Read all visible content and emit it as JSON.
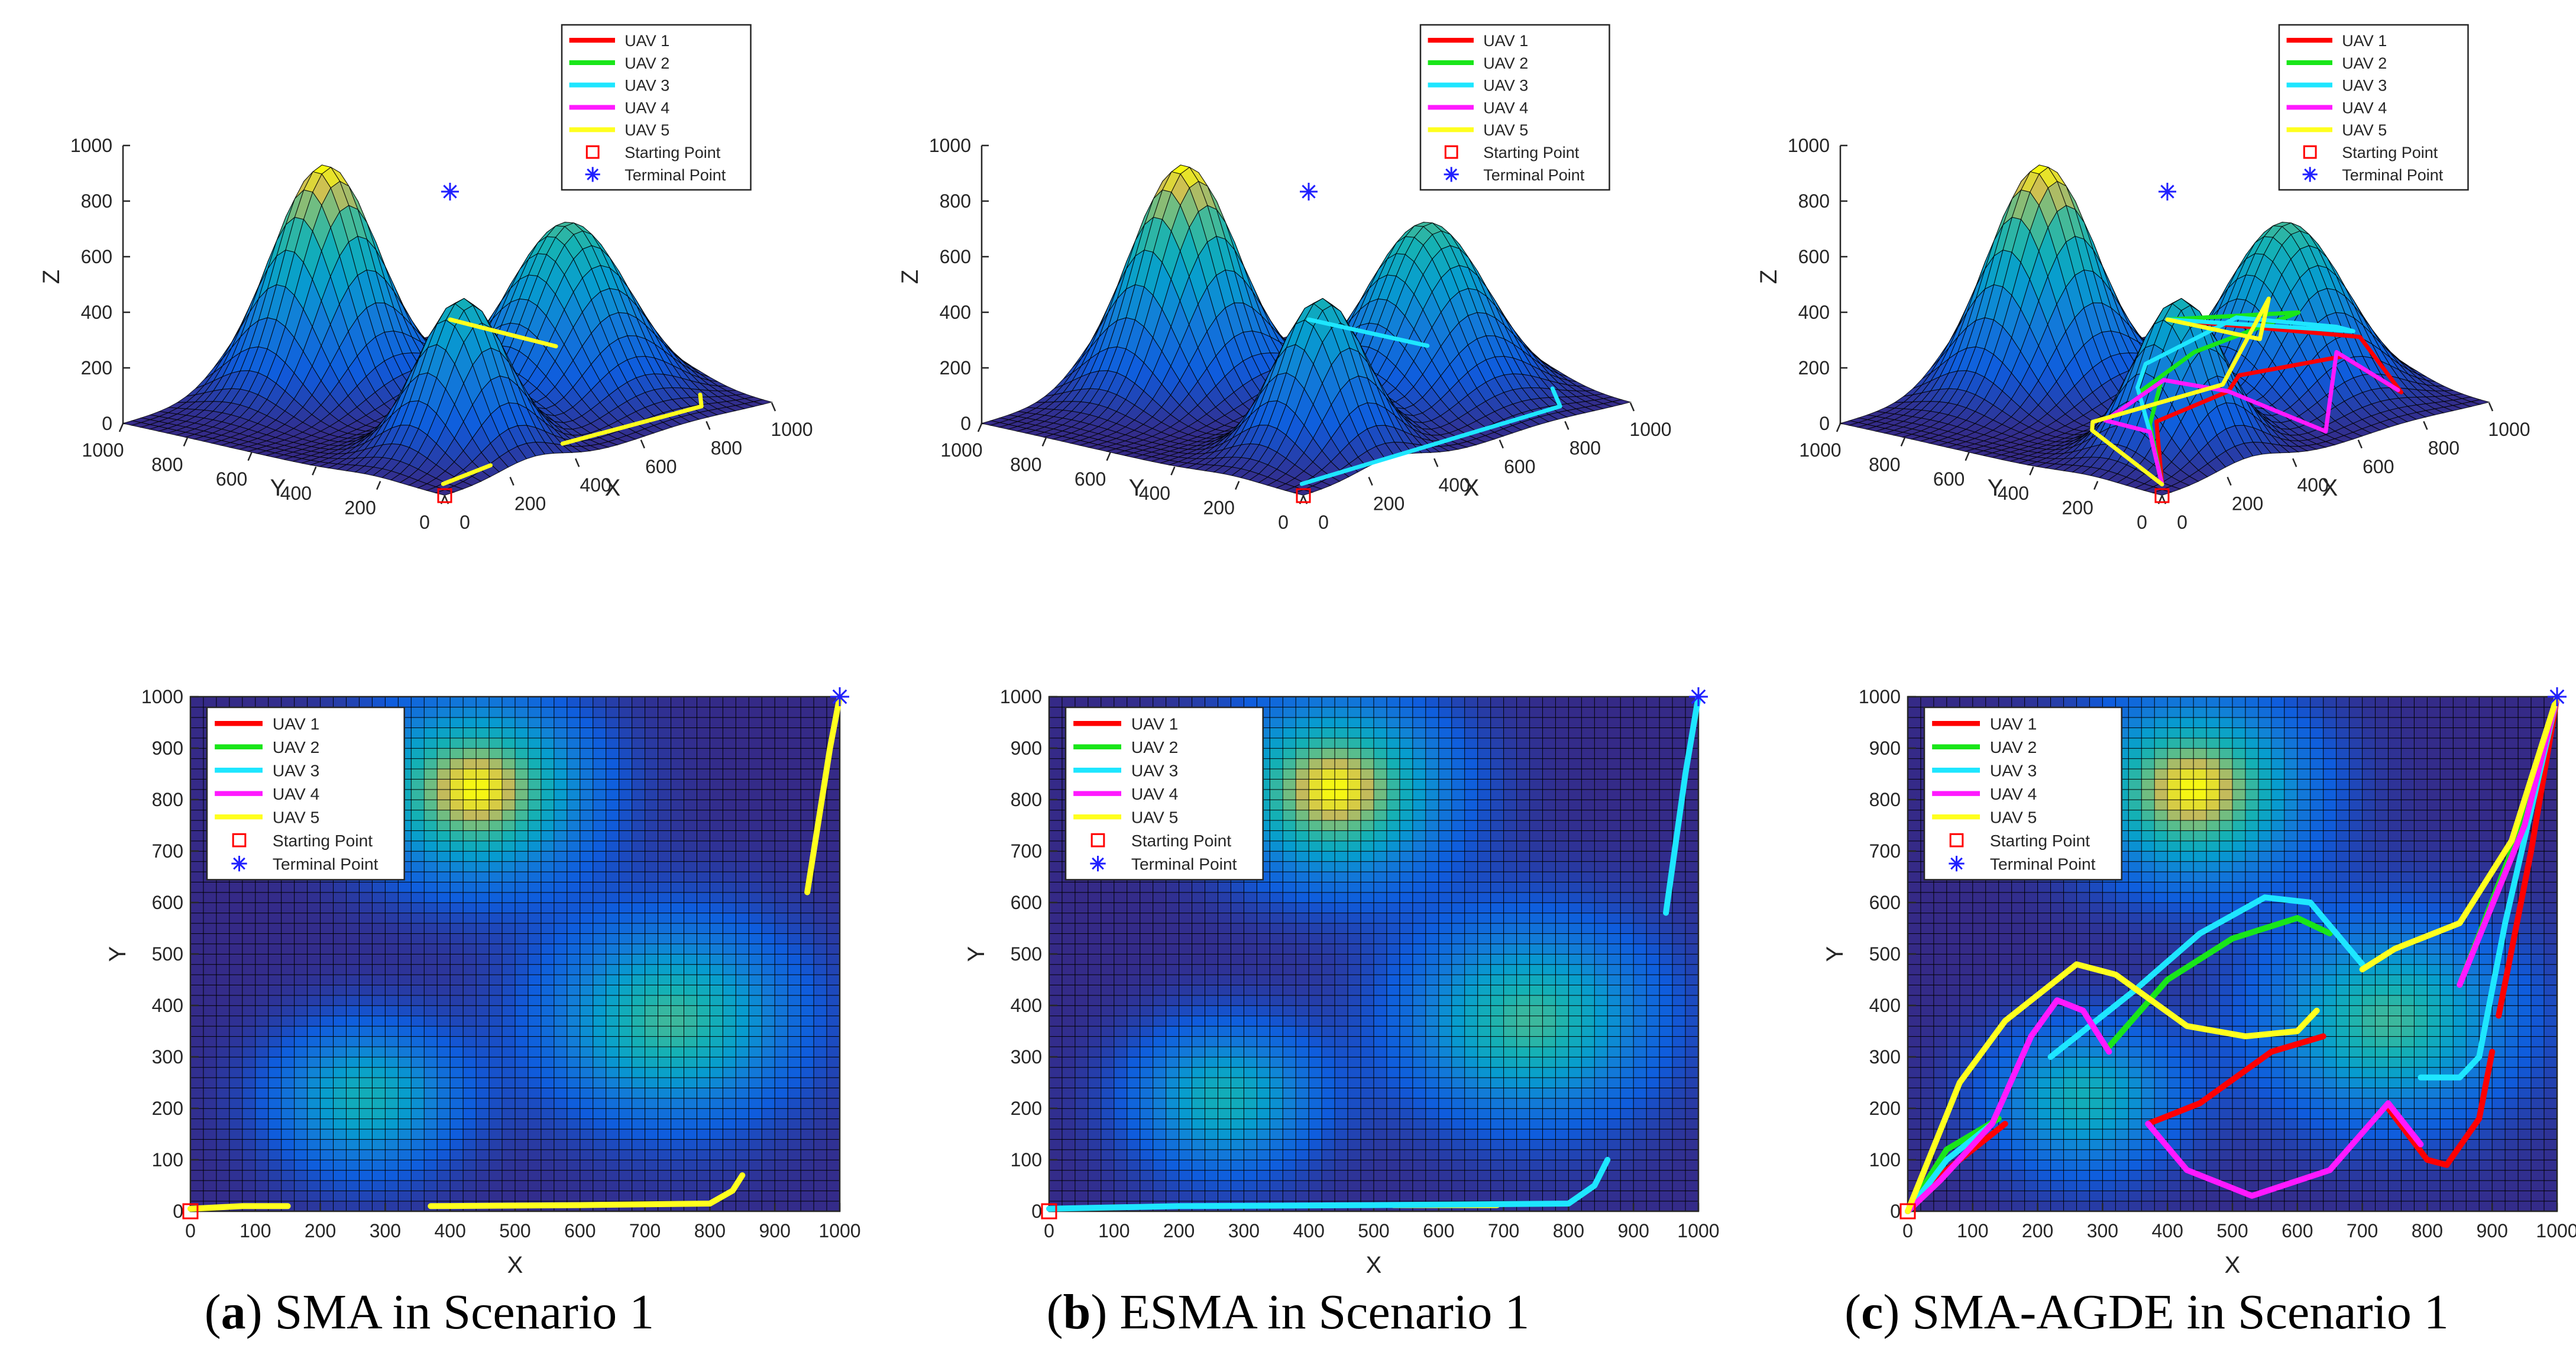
{
  "chart_data": [
    {
      "panel": "a",
      "type": "line",
      "view": "3d",
      "xlabel": "X",
      "ylabel": "Y",
      "zlabel": "Z",
      "xlim": [
        0,
        1000
      ],
      "ylim": [
        0,
        1000
      ],
      "zlim": [
        0,
        1000
      ],
      "xticks": [
        "0",
        "200",
        "400",
        "600",
        "800",
        "1000"
      ],
      "yticks": [
        "0",
        "200",
        "400",
        "600",
        "800",
        "1000"
      ],
      "zticks": [
        "0",
        "200",
        "400",
        "600",
        "800",
        "1000"
      ],
      "legend": [
        "UAV 1",
        "UAV 2",
        "UAV 3",
        "UAV 4",
        "UAV 5",
        "Starting Point",
        "Terminal Point"
      ],
      "start": [
        0,
        0
      ],
      "terminal": [
        1000,
        1000
      ],
      "series": [
        {
          "name": "UAV 5",
          "x": [
            0,
            150
          ],
          "y": [
            5,
            10
          ]
        },
        {
          "name": "UAV 5",
          "x": [
            370,
            800,
            850
          ],
          "y": [
            10,
            15,
            70
          ]
        },
        {
          "name": "UAV 5",
          "x": [
            950,
            1000
          ],
          "y": [
            620,
            1000
          ]
        }
      ]
    },
    {
      "panel": "a",
      "type": "line",
      "view": "top",
      "xlabel": "X",
      "ylabel": "Y",
      "xlim": [
        0,
        1000
      ],
      "ylim": [
        0,
        1000
      ],
      "xticks": [
        "0",
        "100",
        "200",
        "300",
        "400",
        "500",
        "600",
        "700",
        "800",
        "900",
        "1000"
      ],
      "yticks": [
        "0",
        "100",
        "200",
        "300",
        "400",
        "500",
        "600",
        "700",
        "800",
        "900",
        "1000"
      ],
      "legend": [
        "UAV 1",
        "UAV 2",
        "UAV 3",
        "UAV 4",
        "UAV 5",
        "Starting Point",
        "Terminal Point"
      ],
      "start": [
        0,
        0
      ],
      "terminal": [
        1000,
        1000
      ],
      "series": [
        {
          "name": "UAV 5",
          "x": [
            0,
            80,
            150
          ],
          "y": [
            5,
            10,
            10
          ]
        },
        {
          "name": "UAV 5",
          "x": [
            370,
            600,
            800,
            835,
            850
          ],
          "y": [
            10,
            12,
            15,
            40,
            70
          ]
        },
        {
          "name": "UAV 5",
          "x": [
            950,
            985,
            1000
          ],
          "y": [
            620,
            900,
            1000
          ]
        }
      ]
    },
    {
      "panel": "b",
      "type": "line",
      "view": "3d",
      "xlabel": "X",
      "ylabel": "Y",
      "zlabel": "Z",
      "xlim": [
        0,
        1000
      ],
      "ylim": [
        0,
        1000
      ],
      "zlim": [
        0,
        1000
      ],
      "xticks": [
        "0",
        "200",
        "400",
        "600",
        "800",
        "1000"
      ],
      "yticks": [
        "0",
        "200",
        "400",
        "600",
        "800",
        "1000"
      ],
      "zticks": [
        "0",
        "200",
        "400",
        "600",
        "800",
        "1000"
      ],
      "legend": [
        "UAV 1",
        "UAV 2",
        "UAV 3",
        "UAV 4",
        "UAV 5",
        "Starting Point",
        "Terminal Point"
      ],
      "start": [
        0,
        0
      ],
      "terminal": [
        1000,
        1000
      ],
      "series": [
        {
          "name": "UAV 3",
          "x": [
            0,
            800,
            860
          ],
          "y": [
            5,
            15,
            100
          ]
        },
        {
          "name": "UAV 3",
          "x": [
            950,
            1000
          ],
          "y": [
            580,
            1000
          ]
        }
      ]
    },
    {
      "panel": "b",
      "type": "line",
      "view": "top",
      "xlabel": "X",
      "ylabel": "Y",
      "xlim": [
        0,
        1000
      ],
      "ylim": [
        0,
        1000
      ],
      "xticks": [
        "0",
        "100",
        "200",
        "300",
        "400",
        "500",
        "600",
        "700",
        "800",
        "900",
        "1000"
      ],
      "yticks": [
        "0",
        "100",
        "200",
        "300",
        "400",
        "500",
        "600",
        "700",
        "800",
        "900",
        "1000"
      ],
      "legend": [
        "UAV 1",
        "UAV 2",
        "UAV 3",
        "UAV 4",
        "UAV 5",
        "Starting Point",
        "Terminal Point"
      ],
      "start": [
        0,
        0
      ],
      "terminal": [
        1000,
        1000
      ],
      "series": [
        {
          "name": "UAV 5",
          "x": [
            530,
            690
          ],
          "y": [
            12,
            12
          ]
        },
        {
          "name": "UAV 3",
          "x": [
            0,
            200,
            500,
            800,
            840,
            860
          ],
          "y": [
            5,
            10,
            12,
            15,
            50,
            100
          ]
        },
        {
          "name": "UAV 3",
          "x": [
            950,
            980,
            1000
          ],
          "y": [
            580,
            850,
            1000
          ]
        }
      ]
    },
    {
      "panel": "c",
      "type": "line",
      "view": "3d",
      "xlabel": "X",
      "ylabel": "Y",
      "zlabel": "Z",
      "xlim": [
        0,
        1000
      ],
      "ylim": [
        0,
        1000
      ],
      "zlim": [
        0,
        1000
      ],
      "xticks": [
        "0",
        "200",
        "400",
        "600",
        "800",
        "1000"
      ],
      "yticks": [
        "0",
        "200",
        "400",
        "600",
        "800",
        "1000"
      ],
      "zticks": [
        "0",
        "200",
        "400",
        "600",
        "800",
        "1000"
      ],
      "legend": [
        "UAV 1",
        "UAV 2",
        "UAV 3",
        "UAV 4",
        "UAV 5",
        "Starting Point",
        "Terminal Point"
      ],
      "start": [
        0,
        0
      ],
      "terminal": [
        1000,
        1000
      ],
      "series": [
        {
          "name": "UAV 1",
          "x": [
            0,
            150,
            370,
            550,
            750,
            820,
            900,
            1000
          ],
          "y": [
            0,
            170,
            170,
            320,
            200,
            90,
            300,
            1000
          ]
        },
        {
          "name": "UAV 2",
          "x": [
            0,
            140,
            310,
            450,
            650,
            850,
            1000
          ],
          "y": [
            0,
            180,
            320,
            530,
            560,
            440,
            1000
          ]
        },
        {
          "name": "UAV 3",
          "x": [
            0,
            130,
            220,
            550,
            700,
            790,
            880,
            1000
          ],
          "y": [
            0,
            170,
            300,
            610,
            480,
            260,
            300,
            1000
          ]
        },
        {
          "name": "UAV 4",
          "x": [
            0,
            130,
            230,
            310,
            370,
            530,
            740,
            820
          ],
          "y": [
            0,
            170,
            410,
            310,
            170,
            30,
            210,
            100
          ]
        },
        {
          "name": "UAV 5",
          "x": [
            0,
            150,
            260,
            520,
            700,
            850,
            1000
          ],
          "y": [
            0,
            370,
            480,
            340,
            380,
            560,
            1000
          ]
        }
      ]
    },
    {
      "panel": "c",
      "type": "line",
      "view": "top",
      "xlabel": "X",
      "ylabel": "Y",
      "xlim": [
        0,
        1000
      ],
      "ylim": [
        0,
        1000
      ],
      "xticks": [
        "0",
        "100",
        "200",
        "300",
        "400",
        "500",
        "600",
        "700",
        "800",
        "900",
        "1000"
      ],
      "yticks": [
        "0",
        "100",
        "200",
        "300",
        "400",
        "500",
        "600",
        "700",
        "800",
        "900",
        "1000"
      ],
      "legend": [
        "UAV 1",
        "UAV 2",
        "UAV 3",
        "UAV 4",
        "UAV 5",
        "Starting Point",
        "Terminal Point"
      ],
      "start": [
        0,
        0
      ],
      "terminal": [
        1000,
        1000
      ],
      "series": [
        {
          "name": "UAV 1",
          "x": [
            0,
            60,
            150
          ],
          "y": [
            0,
            80,
            170
          ]
        },
        {
          "name": "UAV 1",
          "x": [
            370,
            450,
            560,
            640
          ],
          "y": [
            170,
            210,
            310,
            340
          ]
        },
        {
          "name": "UAV 1",
          "x": [
            740,
            800,
            830,
            880,
            900
          ],
          "y": [
            200,
            100,
            90,
            180,
            310
          ]
        },
        {
          "name": "UAV 1",
          "x": [
            910,
            960,
            1000
          ],
          "y": [
            380,
            700,
            1000
          ]
        },
        {
          "name": "UAV 2",
          "x": [
            0,
            60,
            140
          ],
          "y": [
            0,
            120,
            180
          ]
        },
        {
          "name": "UAV 2",
          "x": [
            310,
            400,
            500,
            600,
            650
          ],
          "y": [
            320,
            450,
            530,
            570,
            540
          ]
        },
        {
          "name": "UAV 2",
          "x": [
            850,
            930,
            1000
          ],
          "y": [
            440,
            700,
            1000
          ]
        },
        {
          "name": "UAV 3",
          "x": [
            0,
            60,
            130
          ],
          "y": [
            0,
            100,
            170
          ]
        },
        {
          "name": "UAV 3",
          "x": [
            220,
            350,
            450,
            550,
            620,
            700
          ],
          "y": [
            300,
            430,
            540,
            610,
            600,
            480
          ]
        },
        {
          "name": "UAV 3",
          "x": [
            790,
            850,
            880,
            920,
            1000
          ],
          "y": [
            260,
            260,
            300,
            560,
            1000
          ]
        },
        {
          "name": "UAV 4",
          "x": [
            0,
            50,
            130,
            190,
            230,
            270,
            310
          ],
          "y": [
            0,
            60,
            170,
            340,
            410,
            390,
            310
          ]
        },
        {
          "name": "UAV 4",
          "x": [
            370,
            430,
            530,
            650,
            740,
            790
          ],
          "y": [
            170,
            80,
            30,
            80,
            210,
            130
          ]
        },
        {
          "name": "UAV 4",
          "x": [
            850,
            950,
            1000
          ],
          "y": [
            440,
            750,
            1000
          ]
        },
        {
          "name": "UAV 5",
          "x": [
            0,
            80,
            150,
            260,
            320,
            430,
            520,
            600,
            630
          ],
          "y": [
            0,
            250,
            370,
            480,
            460,
            360,
            340,
            350,
            390
          ]
        },
        {
          "name": "UAV 5",
          "x": [
            700,
            750,
            850,
            930,
            1000
          ],
          "y": [
            470,
            510,
            560,
            720,
            1000
          ]
        }
      ]
    }
  ],
  "captions": [
    {
      "label": "a",
      "text": "SMA in Scenario 1"
    },
    {
      "label": "b",
      "text": "ESMA in Scenario 1"
    },
    {
      "label": "c",
      "text": "SMA-AGDE in Scenario 1"
    }
  ],
  "series_colors": {
    "UAV 1": "#ff0000",
    "UAV 2": "#19e619",
    "UAV 3": "#1ee6ff",
    "UAV 4": "#ff19ff",
    "UAV 5": "#ffff1e"
  },
  "marker_colors": {
    "start": "#ff0000",
    "terminal": "#2020ff"
  }
}
